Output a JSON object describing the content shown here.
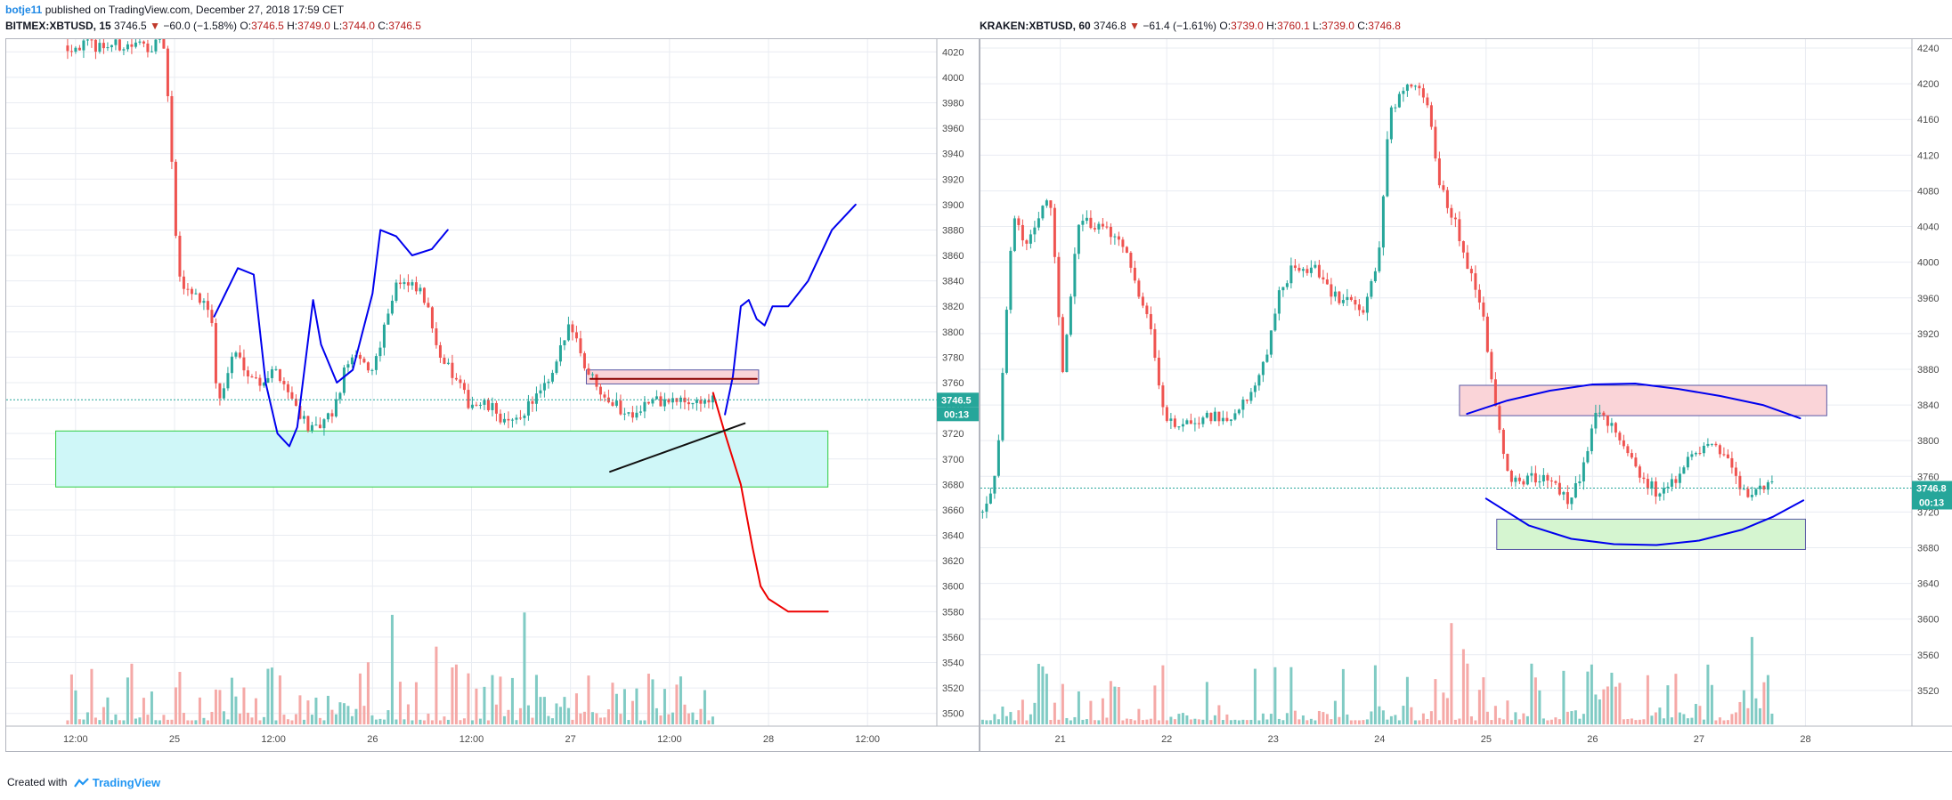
{
  "header": {
    "author": "botje11",
    "published_text": "published on TradingView.com, December 27, 2018 17:59 CET",
    "left": {
      "symbol": "BITMEX:XBTUSD, 15",
      "last": "3746.5",
      "change": "−60.0 (−1.58%)",
      "o_label": "O:",
      "o": "3746.5",
      "h_label": "H:",
      "h": "3749.0",
      "l_label": "L:",
      "l": "3744.0",
      "c_label": "C:",
      "c": "3746.5"
    },
    "right": {
      "symbol": "KRAKEN:XBTUSD, 60",
      "last": "3746.8",
      "change": "−61.4 (−1.61%)",
      "o_label": "O:",
      "o": "3739.0",
      "h_label": "H:",
      "h": "3760.1",
      "l_label": "L:",
      "l": "3739.0",
      "c_label": "C:",
      "c": "3746.8"
    }
  },
  "footer": {
    "created_with": "Created with",
    "brand": "TradingView"
  },
  "colors": {
    "up": "#26a69a",
    "down": "#ef5350",
    "up_vol": "#80cbc4",
    "down_vol": "#f5a9a7",
    "grid": "#e9ecf2",
    "axis_text": "#4a4a4a",
    "price_tag": "#26a69a",
    "blue_drawing": "#0000ee",
    "red_drawing": "#ee0000"
  },
  "chart_data": [
    {
      "type": "candlestick",
      "symbol": "BITMEX:XBTUSD",
      "interval": "15",
      "ylim": [
        3490,
        4030
      ],
      "y_ticks": [
        3500,
        3520,
        3540,
        3560,
        3580,
        3600,
        3620,
        3640,
        3660,
        3680,
        3700,
        3720,
        3740,
        3760,
        3780,
        3800,
        3820,
        3840,
        3860,
        3880,
        3900,
        3920,
        3940,
        3960,
        3980,
        4000,
        4020
      ],
      "x_ticks": [
        {
          "label": "12:00",
          "t": 0.5
        },
        {
          "label": "25",
          "t": 1.0
        },
        {
          "label": "12:00",
          "t": 1.5
        },
        {
          "label": "26",
          "t": 2.0
        },
        {
          "label": "12:00",
          "t": 2.5
        },
        {
          "label": "27",
          "t": 3.0
        },
        {
          "label": "12:00",
          "t": 3.5
        },
        {
          "label": "28",
          "t": 4.0
        },
        {
          "label": "12:00",
          "t": 4.5
        }
      ],
      "x_range": [
        0.15,
        4.85
      ],
      "last_price": 3746.5,
      "last_price_label": "3746.5",
      "countdown_label": "00:13",
      "path_points": [
        [
          0.46,
          4025
        ],
        [
          0.72,
          4025
        ],
        [
          0.95,
          4025
        ],
        [
          1.02,
          3840
        ],
        [
          1.1,
          3830
        ],
        [
          1.18,
          3820
        ],
        [
          1.22,
          3740
        ],
        [
          1.3,
          3785
        ],
        [
          1.42,
          3760
        ],
        [
          1.52,
          3770
        ],
        [
          1.6,
          3745
        ],
        [
          1.7,
          3720
        ],
        [
          1.8,
          3735
        ],
        [
          1.88,
          3780
        ],
        [
          2.0,
          3770
        ],
        [
          2.12,
          3840
        ],
        [
          2.25,
          3830
        ],
        [
          2.35,
          3780
        ],
        [
          2.48,
          3745
        ],
        [
          2.6,
          3740
        ],
        [
          2.7,
          3725
        ],
        [
          2.8,
          3745
        ],
        [
          2.9,
          3760
        ],
        [
          3.0,
          3810
        ],
        [
          3.08,
          3770
        ],
        [
          3.18,
          3750
        ],
        [
          3.28,
          3735
        ],
        [
          3.4,
          3745
        ],
        [
          3.52,
          3745
        ],
        [
          3.62,
          3745
        ],
        [
          3.72,
          3746.5
        ]
      ],
      "candle_start": 0.46,
      "candle_end": 3.72,
      "volume_max": 330,
      "rectangles": [
        {
          "name": "support-zone",
          "t0": 0.4,
          "t1": 4.3,
          "p0": 3722,
          "p1": 3678,
          "fill": "#cff7f8",
          "stroke": "#2ecc40"
        },
        {
          "name": "resistance-zone",
          "t0": 3.08,
          "t1": 3.95,
          "p0": 3770,
          "p1": 3759,
          "fill": "#fad4d8",
          "stroke": "#5a5aa5"
        }
      ],
      "drawings": [
        {
          "name": "blue-projection-path",
          "color": "#0000ee",
          "points": [
            [
              1.2,
              3812
            ],
            [
              1.32,
              3850
            ],
            [
              1.4,
              3845
            ],
            [
              1.46,
              3760
            ],
            [
              1.52,
              3720
            ],
            [
              1.58,
              3710
            ],
            [
              1.62,
              3725
            ],
            [
              1.7,
              3825
            ],
            [
              1.74,
              3790
            ],
            [
              1.82,
              3760
            ],
            [
              1.9,
              3770
            ],
            [
              2.0,
              3830
            ],
            [
              2.04,
              3880
            ],
            [
              2.12,
              3875
            ],
            [
              2.2,
              3860
            ],
            [
              2.3,
              3865
            ],
            [
              2.38,
              3880
            ]
          ]
        },
        {
          "name": "blue-projection-path-2",
          "color": "#0000ee",
          "points": [
            [
              3.78,
              3735
            ],
            [
              3.82,
              3765
            ],
            [
              3.86,
              3820
            ],
            [
              3.9,
              3825
            ],
            [
              3.94,
              3810
            ],
            [
              3.98,
              3805
            ],
            [
              4.02,
              3820
            ],
            [
              4.1,
              3820
            ],
            [
              4.2,
              3840
            ],
            [
              4.32,
              3880
            ],
            [
              4.44,
              3900
            ]
          ]
        },
        {
          "name": "red-projection-path",
          "color": "#ee0000",
          "points": [
            [
              3.72,
              3752
            ],
            [
              3.78,
              3720
            ],
            [
              3.86,
              3680
            ],
            [
              3.92,
              3630
            ],
            [
              3.96,
              3600
            ],
            [
              4.0,
              3590
            ],
            [
              4.1,
              3580
            ],
            [
              4.3,
              3580
            ]
          ]
        },
        {
          "name": "black-trendline",
          "color": "#111111",
          "points": [
            [
              3.2,
              3690
            ],
            [
              3.88,
              3728
            ]
          ]
        },
        {
          "name": "dark-red-line",
          "color": "#8b0000",
          "points": [
            [
              3.1,
              3763
            ],
            [
              3.94,
              3763
            ]
          ]
        }
      ]
    },
    {
      "type": "candlestick",
      "symbol": "KRAKEN:XBTUSD",
      "interval": "60",
      "ylim": [
        3480,
        4250
      ],
      "y_ticks": [
        3520,
        3560,
        3600,
        3640,
        3680,
        3720,
        3760,
        3800,
        3840,
        3880,
        3920,
        3960,
        4000,
        4040,
        4080,
        4120,
        4160,
        4200,
        4240
      ],
      "x_ticks": [
        {
          "label": "21",
          "t": 21
        },
        {
          "label": "22",
          "t": 22
        },
        {
          "label": "23",
          "t": 23
        },
        {
          "label": "24",
          "t": 24
        },
        {
          "label": "25",
          "t": 25
        },
        {
          "label": "26",
          "t": 26
        },
        {
          "label": "27",
          "t": 27
        },
        {
          "label": "28",
          "t": 28
        }
      ],
      "x_range": [
        20.25,
        29.0
      ],
      "last_price": 3746.8,
      "last_price_label": "3746.8",
      "countdown_label": "00:13",
      "path_points": [
        [
          20.27,
          3720
        ],
        [
          20.4,
          3760
        ],
        [
          20.55,
          4050
        ],
        [
          20.7,
          4020
        ],
        [
          20.9,
          4080
        ],
        [
          21.02,
          3880
        ],
        [
          21.18,
          4050
        ],
        [
          21.4,
          4040
        ],
        [
          21.6,
          4020
        ],
        [
          21.85,
          3920
        ],
        [
          21.98,
          3820
        ],
        [
          22.2,
          3820
        ],
        [
          22.4,
          3830
        ],
        [
          22.6,
          3820
        ],
        [
          22.8,
          3860
        ],
        [
          22.95,
          3900
        ],
        [
          23.05,
          3960
        ],
        [
          23.2,
          4000
        ],
        [
          23.4,
          3990
        ],
        [
          23.55,
          3960
        ],
        [
          23.7,
          3960
        ],
        [
          23.85,
          3940
        ],
        [
          23.98,
          4000
        ],
        [
          24.1,
          4170
        ],
        [
          24.3,
          4200
        ],
        [
          24.45,
          4180
        ],
        [
          24.55,
          4090
        ],
        [
          24.7,
          4050
        ],
        [
          24.85,
          3990
        ],
        [
          25.0,
          3920
        ],
        [
          25.1,
          3820
        ],
        [
          25.25,
          3750
        ],
        [
          25.45,
          3760
        ],
        [
          25.6,
          3760
        ],
        [
          25.78,
          3730
        ],
        [
          25.92,
          3770
        ],
        [
          26.05,
          3840
        ],
        [
          26.2,
          3810
        ],
        [
          26.35,
          3780
        ],
        [
          26.5,
          3750
        ],
        [
          26.68,
          3740
        ],
        [
          26.85,
          3770
        ],
        [
          27.0,
          3790
        ],
        [
          27.15,
          3800
        ],
        [
          27.3,
          3770
        ],
        [
          27.45,
          3740
        ],
        [
          27.6,
          3748
        ],
        [
          27.72,
          3746.8
        ]
      ],
      "candle_start": 20.27,
      "candle_end": 27.72,
      "volume_max": 1300,
      "rectangles": [
        {
          "name": "resistance-zone",
          "t0": 24.75,
          "t1": 28.2,
          "p0": 3862,
          "p1": 3828,
          "fill": "#fad4d8",
          "stroke": "#5a5aa5"
        },
        {
          "name": "support-zone",
          "t0": 25.1,
          "t1": 28.0,
          "p0": 3712,
          "p1": 3678,
          "fill": "#d5f5d0",
          "stroke": "#5a5aa5"
        }
      ],
      "drawings": [
        {
          "name": "blue-top-arc",
          "color": "#0000ee",
          "points": [
            [
              24.82,
              3830
            ],
            [
              25.2,
              3845
            ],
            [
              25.6,
              3856
            ],
            [
              26.0,
              3863
            ],
            [
              26.4,
              3864
            ],
            [
              26.8,
              3858
            ],
            [
              27.2,
              3850
            ],
            [
              27.6,
              3840
            ],
            [
              27.95,
              3825
            ]
          ]
        },
        {
          "name": "blue-bottom-arc",
          "color": "#0000ee",
          "points": [
            [
              25.0,
              3735
            ],
            [
              25.4,
              3705
            ],
            [
              25.8,
              3690
            ],
            [
              26.2,
              3684
            ],
            [
              26.6,
              3683
            ],
            [
              27.0,
              3688
            ],
            [
              27.4,
              3700
            ],
            [
              27.7,
              3715
            ],
            [
              27.98,
              3733
            ]
          ]
        }
      ]
    }
  ]
}
